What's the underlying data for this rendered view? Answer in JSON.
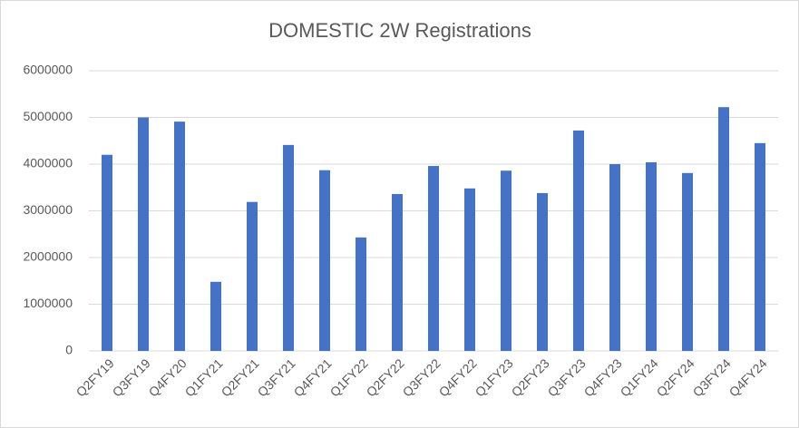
{
  "chart_data": {
    "type": "bar",
    "title": "DOMESTIC 2W Registrations",
    "categories": [
      "Q2FY19",
      "Q3FY19",
      "Q4FY20",
      "Q1FY21",
      "Q2FY21",
      "Q3FY21",
      "Q4FY21",
      "Q1FY22",
      "Q2FY22",
      "Q3FY22",
      "Q4FY22",
      "Q1FY23",
      "Q2FY23",
      "Q3FY23",
      "Q4FY23",
      "Q1FY24",
      "Q2FY24",
      "Q3FY24",
      "Q4FY24"
    ],
    "values": [
      4200000,
      5000000,
      4910000,
      1480000,
      3190000,
      4410000,
      3870000,
      2430000,
      3360000,
      3960000,
      3480000,
      3860000,
      3380000,
      4720000,
      4000000,
      4040000,
      3810000,
      5220000,
      4450000
    ],
    "color": "#4472c4",
    "ylim": [
      0,
      6000000
    ],
    "yticks": [
      0,
      1000000,
      2000000,
      3000000,
      4000000,
      5000000,
      6000000
    ],
    "grid": true
  }
}
